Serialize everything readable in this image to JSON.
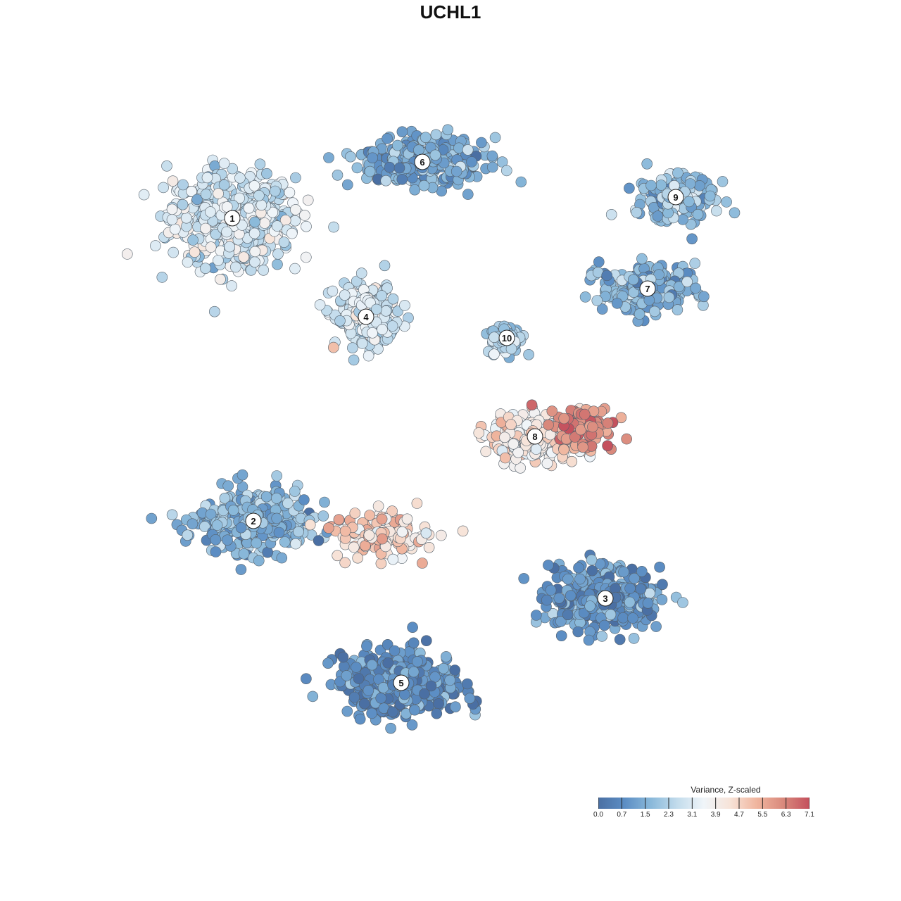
{
  "chart_data": {
    "type": "scatter",
    "title": "UCHL1",
    "xlabel": "",
    "ylabel": "",
    "grid": false,
    "colorbar": {
      "title": "Variance, Z-scaled",
      "ticks": [
        "0.0",
        "0.7",
        "1.5",
        "2.3",
        "3.1",
        "3.9",
        "4.7",
        "5.5",
        "6.3",
        "7.1"
      ],
      "min": 0.0,
      "max": 7.1,
      "colors": [
        "#4a6fa3",
        "#5c8ec4",
        "#8ab9da",
        "#c3dcec",
        "#f0f5f9",
        "#f7e3d8",
        "#f0b59e",
        "#d9897c",
        "#c4505d"
      ],
      "position": "bottom-right"
    },
    "clusters": [
      {
        "label": "1",
        "x": -31,
        "y": 36,
        "spread_x": 8,
        "spread_y": 6,
        "mean_value": 3.0
      },
      {
        "label": "2",
        "x": -28,
        "y": -7,
        "spread_x": 7,
        "spread_y": 4,
        "mean_value": 1.6
      },
      {
        "label": "3",
        "x": 22,
        "y": -18,
        "spread_x": 7,
        "spread_y": 4,
        "mean_value": 1.0
      },
      {
        "label": "4",
        "x": -12,
        "y": 22,
        "spread_x": 4,
        "spread_y": 4,
        "mean_value": 3.0
      },
      {
        "label": "5",
        "x": -7,
        "y": -30,
        "spread_x": 8,
        "spread_y": 4,
        "mean_value": 0.8
      },
      {
        "label": "6",
        "x": -4,
        "y": 44,
        "spread_x": 8,
        "spread_y": 3,
        "mean_value": 1.4
      },
      {
        "label": "7",
        "x": 28,
        "y": 26,
        "spread_x": 6,
        "spread_y": 3,
        "mean_value": 1.6
      },
      {
        "label": "8",
        "x": 12,
        "y": 5,
        "spread_x": 6,
        "spread_y": 3,
        "mean_value": 4.2
      },
      {
        "label": "9",
        "x": 32,
        "y": 39,
        "spread_x": 5,
        "spread_y": 3,
        "mean_value": 2.0
      },
      {
        "label": "10",
        "x": 8,
        "y": 19,
        "spread_x": 2,
        "spread_y": 2,
        "mean_value": 2.2
      }
    ],
    "hotspots": [
      {
        "near_cluster": "8",
        "x": 19,
        "y": 6,
        "spread_x": 4,
        "spread_y": 3,
        "mean_value": 6.2
      },
      {
        "near_cluster": "2",
        "x": -10,
        "y": -9,
        "spread_x": 6,
        "spread_y": 3,
        "mean_value": 4.6
      }
    ],
    "xlim": [
      -50,
      50
    ],
    "ylim": [
      -50,
      55
    ]
  }
}
